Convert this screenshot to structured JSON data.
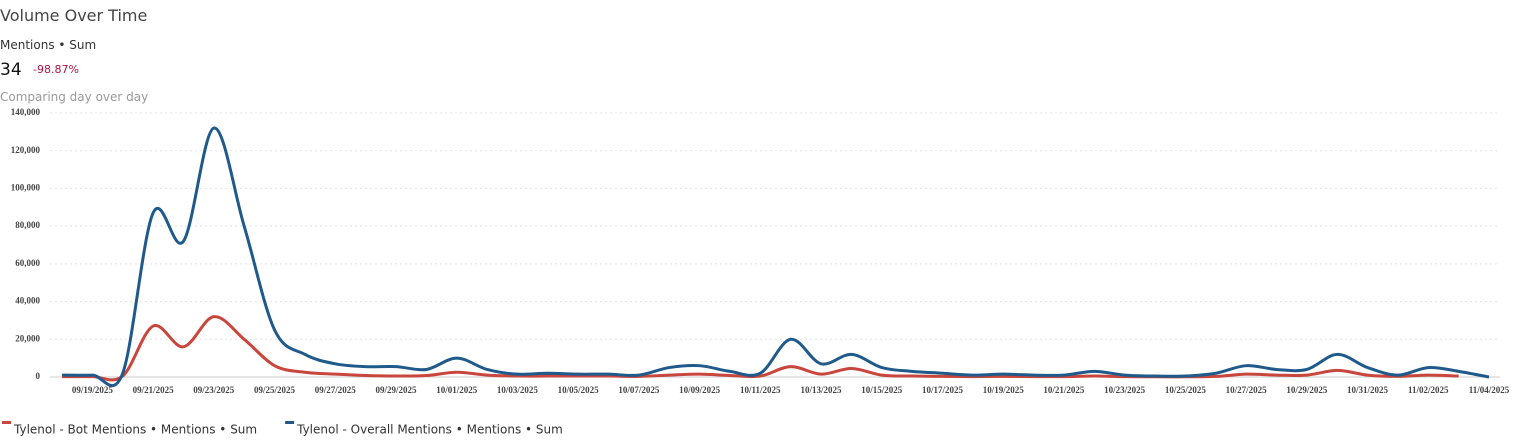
{
  "chart_data": {
    "type": "line",
    "title": "Volume Over Time",
    "subtitle": "Mentions • Sum",
    "metric": "34",
    "change": "-98.87%",
    "comparison": "Comparing day over day",
    "categories": [
      null,
      "09/19/2025",
      null,
      "09/21/2025",
      null,
      "09/23/2025",
      null,
      "09/25/2025",
      null,
      "09/27/2025",
      null,
      "09/29/2025",
      null,
      "10/01/2025",
      null,
      "10/03/2025",
      null,
      "10/05/2025",
      null,
      "10/07/2025",
      null,
      "10/09/2025",
      null,
      "10/11/2025",
      null,
      "10/13/2025",
      null,
      "10/15/2025",
      null,
      "10/17/2025",
      null,
      "10/19/2025",
      null,
      "10/21/2025",
      null,
      "10/23/2025",
      null,
      "10/25/2025",
      null,
      "10/27/2025",
      null,
      "10/29/2025",
      null,
      "10/31/2025",
      null,
      "11/02/2025",
      null,
      "11/04/2025"
    ],
    "series": [
      {
        "name": "Tylenol - Bot Mentions • Mentions • Sum",
        "color": "#c9463d",
        "values": [
          200,
          200,
          500,
          27000,
          16000,
          32000,
          20000,
          6000,
          2500,
          1500,
          800,
          500,
          800,
          2500,
          1000,
          500,
          500,
          500,
          500,
          300,
          1000,
          1500,
          800,
          500,
          5500,
          1500,
          4500,
          1000,
          500,
          300,
          200,
          300,
          200,
          200,
          500,
          200,
          100,
          100,
          300,
          1500,
          1000,
          1000,
          3500,
          1000,
          300,
          1000,
          500,
          null
        ]
      },
      {
        "name": "Tylenol - Overall Mentions • Mentions • Sum",
        "color": "#1f5a8a",
        "values": [
          1000,
          1000,
          2000,
          87000,
          72000,
          132000,
          80000,
          25000,
          12000,
          7000,
          5500,
          5500,
          4000,
          10000,
          4000,
          1500,
          2000,
          1500,
          1500,
          1000,
          5000,
          6000,
          3000,
          2000,
          20000,
          7000,
          12000,
          5000,
          3000,
          2000,
          1000,
          1500,
          1000,
          1000,
          3000,
          1000,
          500,
          500,
          2000,
          6000,
          4000,
          4000,
          12000,
          5000,
          1000,
          5000,
          3000,
          0
        ]
      }
    ],
    "ylim": [
      0,
      140000
    ],
    "yticks": [
      0,
      {
        "value": 20000,
        "label": "20,000"
      },
      {
        "value": 40000,
        "label": "40,000"
      },
      {
        "value": 60000,
        "label": "60,000"
      },
      {
        "value": 80000,
        "label": "80,000"
      },
      {
        "value": 100000,
        "label": "100,000"
      },
      {
        "value": 120000,
        "label": "120,000"
      },
      {
        "value": 140000,
        "label": "140,000"
      }
    ],
    "grid": true
  }
}
